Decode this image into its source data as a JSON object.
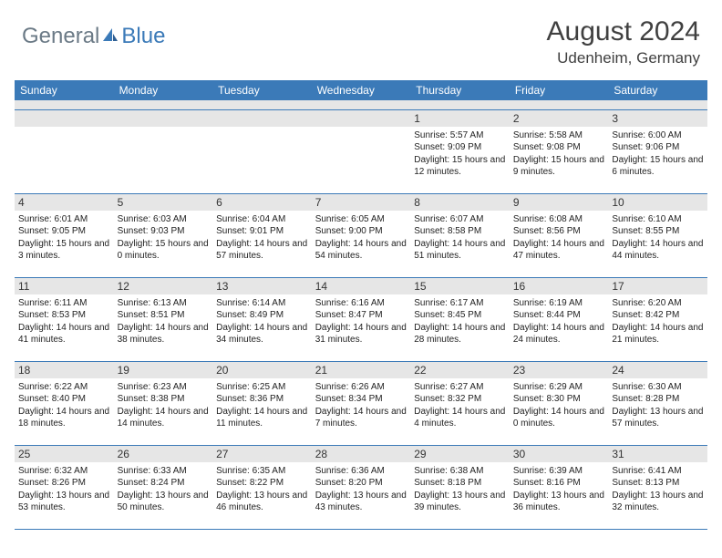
{
  "logo": {
    "part1": "General",
    "part2": "Blue"
  },
  "title": "August 2024",
  "location": "Udenheim, Germany",
  "colors": {
    "header_bg": "#3b7ab8",
    "header_text": "#ffffff",
    "daynum_bg": "#e6e6e6",
    "border": "#3b7ab8",
    "logo_gray": "#6b7a86",
    "logo_blue": "#3b7ab8",
    "page_bg": "#ffffff"
  },
  "weekdays": [
    "Sunday",
    "Monday",
    "Tuesday",
    "Wednesday",
    "Thursday",
    "Friday",
    "Saturday"
  ],
  "weeks": [
    [
      null,
      null,
      null,
      null,
      {
        "n": "1",
        "sr": "Sunrise: 5:57 AM",
        "ss": "Sunset: 9:09 PM",
        "dl": "Daylight: 15 hours and 12 minutes."
      },
      {
        "n": "2",
        "sr": "Sunrise: 5:58 AM",
        "ss": "Sunset: 9:08 PM",
        "dl": "Daylight: 15 hours and 9 minutes."
      },
      {
        "n": "3",
        "sr": "Sunrise: 6:00 AM",
        "ss": "Sunset: 9:06 PM",
        "dl": "Daylight: 15 hours and 6 minutes."
      }
    ],
    [
      {
        "n": "4",
        "sr": "Sunrise: 6:01 AM",
        "ss": "Sunset: 9:05 PM",
        "dl": "Daylight: 15 hours and 3 minutes."
      },
      {
        "n": "5",
        "sr": "Sunrise: 6:03 AM",
        "ss": "Sunset: 9:03 PM",
        "dl": "Daylight: 15 hours and 0 minutes."
      },
      {
        "n": "6",
        "sr": "Sunrise: 6:04 AM",
        "ss": "Sunset: 9:01 PM",
        "dl": "Daylight: 14 hours and 57 minutes."
      },
      {
        "n": "7",
        "sr": "Sunrise: 6:05 AM",
        "ss": "Sunset: 9:00 PM",
        "dl": "Daylight: 14 hours and 54 minutes."
      },
      {
        "n": "8",
        "sr": "Sunrise: 6:07 AM",
        "ss": "Sunset: 8:58 PM",
        "dl": "Daylight: 14 hours and 51 minutes."
      },
      {
        "n": "9",
        "sr": "Sunrise: 6:08 AM",
        "ss": "Sunset: 8:56 PM",
        "dl": "Daylight: 14 hours and 47 minutes."
      },
      {
        "n": "10",
        "sr": "Sunrise: 6:10 AM",
        "ss": "Sunset: 8:55 PM",
        "dl": "Daylight: 14 hours and 44 minutes."
      }
    ],
    [
      {
        "n": "11",
        "sr": "Sunrise: 6:11 AM",
        "ss": "Sunset: 8:53 PM",
        "dl": "Daylight: 14 hours and 41 minutes."
      },
      {
        "n": "12",
        "sr": "Sunrise: 6:13 AM",
        "ss": "Sunset: 8:51 PM",
        "dl": "Daylight: 14 hours and 38 minutes."
      },
      {
        "n": "13",
        "sr": "Sunrise: 6:14 AM",
        "ss": "Sunset: 8:49 PM",
        "dl": "Daylight: 14 hours and 34 minutes."
      },
      {
        "n": "14",
        "sr": "Sunrise: 6:16 AM",
        "ss": "Sunset: 8:47 PM",
        "dl": "Daylight: 14 hours and 31 minutes."
      },
      {
        "n": "15",
        "sr": "Sunrise: 6:17 AM",
        "ss": "Sunset: 8:45 PM",
        "dl": "Daylight: 14 hours and 28 minutes."
      },
      {
        "n": "16",
        "sr": "Sunrise: 6:19 AM",
        "ss": "Sunset: 8:44 PM",
        "dl": "Daylight: 14 hours and 24 minutes."
      },
      {
        "n": "17",
        "sr": "Sunrise: 6:20 AM",
        "ss": "Sunset: 8:42 PM",
        "dl": "Daylight: 14 hours and 21 minutes."
      }
    ],
    [
      {
        "n": "18",
        "sr": "Sunrise: 6:22 AM",
        "ss": "Sunset: 8:40 PM",
        "dl": "Daylight: 14 hours and 18 minutes."
      },
      {
        "n": "19",
        "sr": "Sunrise: 6:23 AM",
        "ss": "Sunset: 8:38 PM",
        "dl": "Daylight: 14 hours and 14 minutes."
      },
      {
        "n": "20",
        "sr": "Sunrise: 6:25 AM",
        "ss": "Sunset: 8:36 PM",
        "dl": "Daylight: 14 hours and 11 minutes."
      },
      {
        "n": "21",
        "sr": "Sunrise: 6:26 AM",
        "ss": "Sunset: 8:34 PM",
        "dl": "Daylight: 14 hours and 7 minutes."
      },
      {
        "n": "22",
        "sr": "Sunrise: 6:27 AM",
        "ss": "Sunset: 8:32 PM",
        "dl": "Daylight: 14 hours and 4 minutes."
      },
      {
        "n": "23",
        "sr": "Sunrise: 6:29 AM",
        "ss": "Sunset: 8:30 PM",
        "dl": "Daylight: 14 hours and 0 minutes."
      },
      {
        "n": "24",
        "sr": "Sunrise: 6:30 AM",
        "ss": "Sunset: 8:28 PM",
        "dl": "Daylight: 13 hours and 57 minutes."
      }
    ],
    [
      {
        "n": "25",
        "sr": "Sunrise: 6:32 AM",
        "ss": "Sunset: 8:26 PM",
        "dl": "Daylight: 13 hours and 53 minutes."
      },
      {
        "n": "26",
        "sr": "Sunrise: 6:33 AM",
        "ss": "Sunset: 8:24 PM",
        "dl": "Daylight: 13 hours and 50 minutes."
      },
      {
        "n": "27",
        "sr": "Sunrise: 6:35 AM",
        "ss": "Sunset: 8:22 PM",
        "dl": "Daylight: 13 hours and 46 minutes."
      },
      {
        "n": "28",
        "sr": "Sunrise: 6:36 AM",
        "ss": "Sunset: 8:20 PM",
        "dl": "Daylight: 13 hours and 43 minutes."
      },
      {
        "n": "29",
        "sr": "Sunrise: 6:38 AM",
        "ss": "Sunset: 8:18 PM",
        "dl": "Daylight: 13 hours and 39 minutes."
      },
      {
        "n": "30",
        "sr": "Sunrise: 6:39 AM",
        "ss": "Sunset: 8:16 PM",
        "dl": "Daylight: 13 hours and 36 minutes."
      },
      {
        "n": "31",
        "sr": "Sunrise: 6:41 AM",
        "ss": "Sunset: 8:13 PM",
        "dl": "Daylight: 13 hours and 32 minutes."
      }
    ]
  ]
}
